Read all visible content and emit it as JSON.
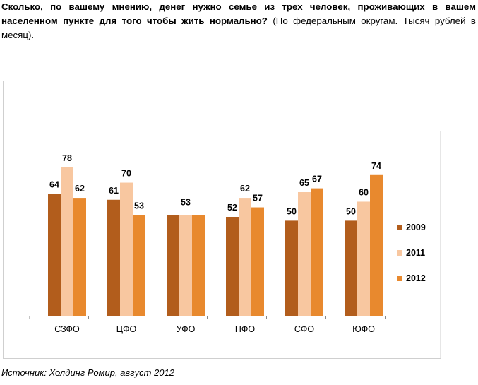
{
  "heading": {
    "question": "Сколько, по вашему мнению, денег нужно семье из трех человек, проживающих в вашем населенном пункте для того чтобы жить нормально?",
    "note": "(По федеральным округам. Тысяч рублей в месяц)."
  },
  "source": "Источник: Холдинг Ромир, август 2012",
  "colors": {
    "2009": "#b25d1c",
    "2011": "#f8c7a0",
    "2012": "#e8892e",
    "axis": "#888888",
    "frame": "#cfcfcf"
  },
  "chart_data": {
    "type": "bar",
    "title": "",
    "xlabel": "",
    "ylabel": "",
    "categories": [
      "СЗФО",
      "ЦФО",
      "УФО",
      "ПФО",
      "СФО",
      "ЮФО"
    ],
    "series": [
      {
        "name": "2009",
        "values": [
          64,
          61,
          53,
          52,
          50,
          50
        ]
      },
      {
        "name": "2011",
        "values": [
          78,
          70,
          53,
          62,
          65,
          60
        ]
      },
      {
        "name": "2012",
        "values": [
          62,
          53,
          53,
          57,
          67,
          74
        ]
      }
    ],
    "data_labels": [
      [
        "64",
        "78",
        "62"
      ],
      [
        "61",
        "70",
        "53"
      ],
      [
        "53"
      ],
      [
        "52",
        "62",
        "57"
      ],
      [
        "50",
        "65",
        "67"
      ],
      [
        "50",
        "60",
        "74"
      ]
    ],
    "ylim": [
      0,
      91
    ],
    "grid": false,
    "legend_position": "right"
  }
}
